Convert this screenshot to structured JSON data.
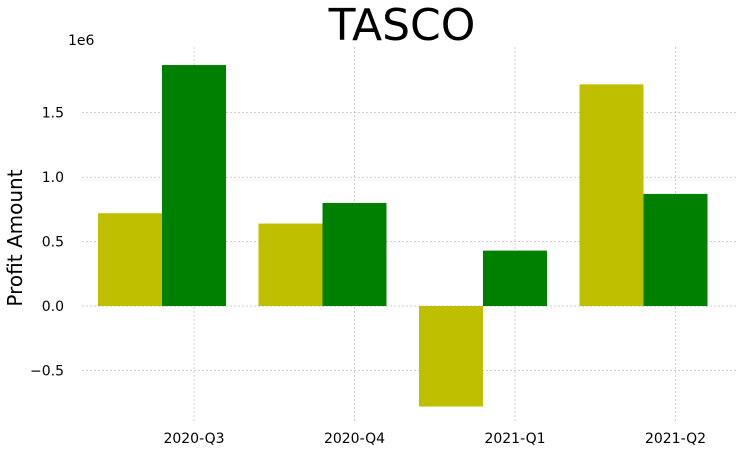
{
  "chart_data": {
    "type": "bar",
    "title": "TASCO",
    "xlabel": "",
    "ylabel": "Profit Amount",
    "y_offset_label": "1e6",
    "categories": [
      "2020-Q3",
      "2020-Q4",
      "2021-Q1",
      "2021-Q2"
    ],
    "series": [
      {
        "color": "#bfbf00",
        "values": [
          720000,
          640000,
          -780000,
          1720000
        ]
      },
      {
        "color": "#008000",
        "values": [
          1870000,
          800000,
          430000,
          870000
        ]
      }
    ],
    "yticks": [
      -0.5,
      0.0,
      0.5,
      1.0,
      1.5
    ],
    "ytick_labels": [
      "−0.5",
      "0.0",
      "0.5",
      "1.0",
      "1.5"
    ],
    "ylim": [
      -900000,
      2010000
    ],
    "grid": true,
    "legend": "none"
  }
}
